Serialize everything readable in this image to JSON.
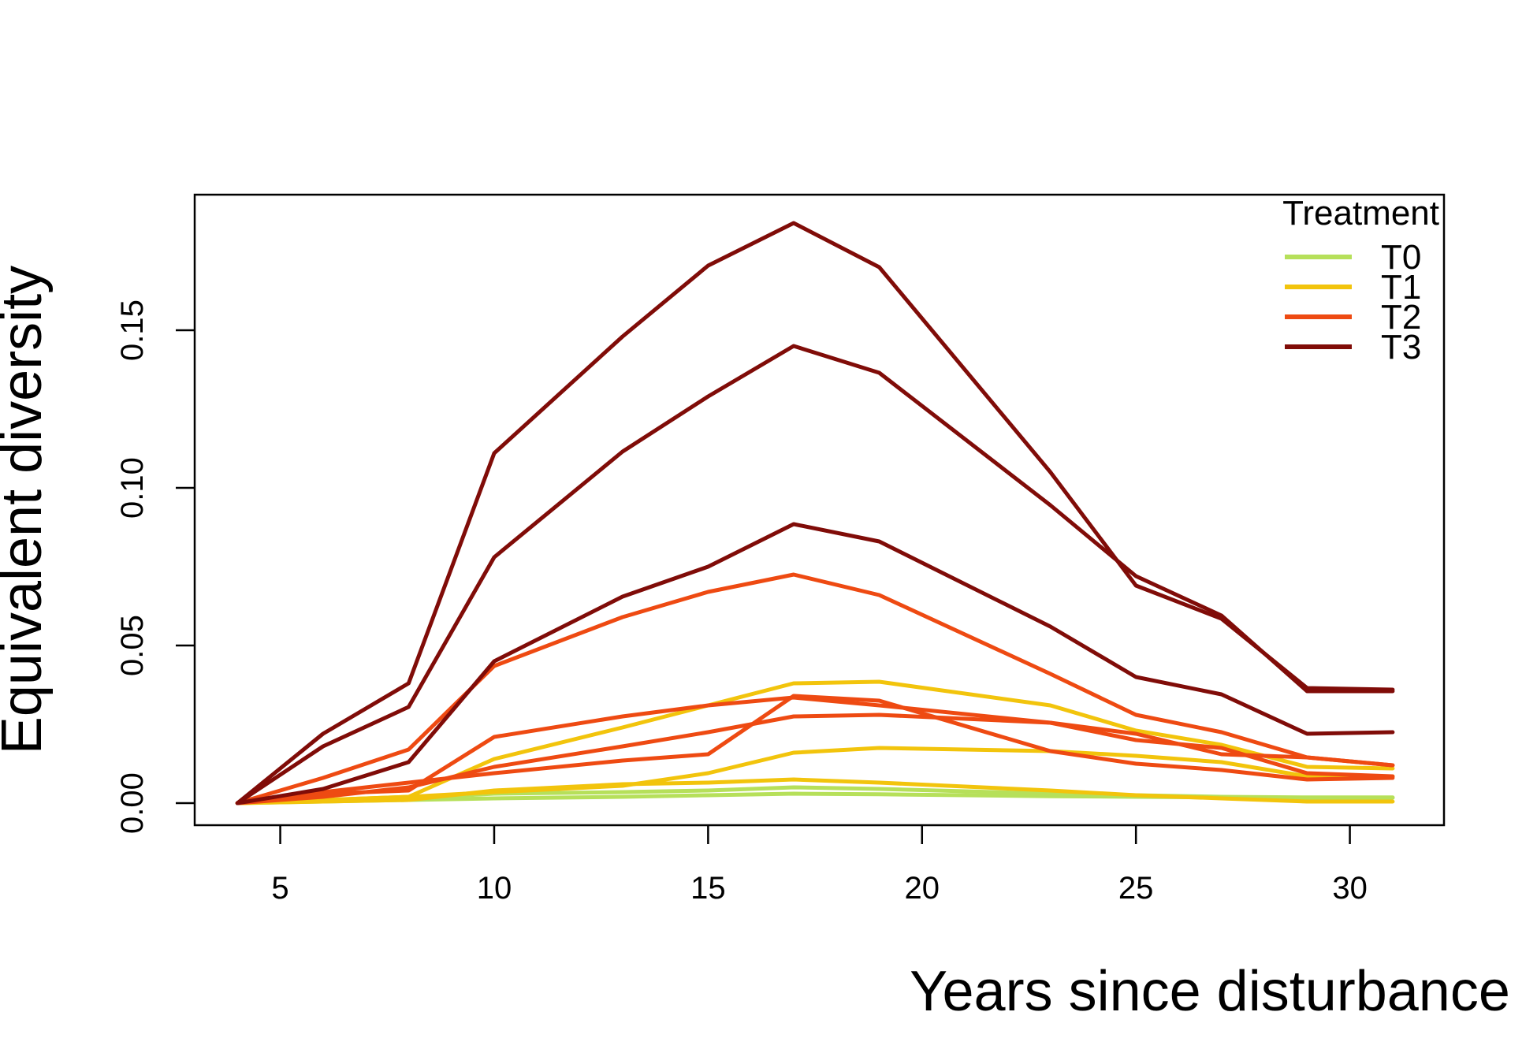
{
  "chart_data": {
    "type": "line",
    "xlabel": "Years since disturbance",
    "ylabel": "Equivalent diversity",
    "xlim": [
      3,
      32.2
    ],
    "ylim": [
      -0.007,
      0.193
    ],
    "x_ticks": [
      "5",
      "10",
      "15",
      "20",
      "25",
      "30"
    ],
    "y_ticks": [
      "0.00",
      "0.05",
      "0.10",
      "0.15"
    ],
    "x": [
      4,
      6,
      8,
      10,
      13,
      15,
      17,
      19,
      23,
      25,
      27,
      29,
      31
    ],
    "grid": false,
    "legend": {
      "title": "Treatment",
      "placement": "top-right",
      "entries": [
        {
          "label": "T0",
          "color": "#b6e05a"
        },
        {
          "label": "T1",
          "color": "#f2c40c"
        },
        {
          "label": "T2",
          "color": "#ee4a12"
        },
        {
          "label": "T3",
          "color": "#800c08"
        }
      ]
    },
    "series": [
      {
        "group": "T0",
        "color": "#b6e05a",
        "values": [
          0.0,
          0.0005,
          0.001,
          0.0015,
          0.002,
          0.0025,
          0.003,
          0.0028,
          0.0022,
          0.002,
          0.0018,
          0.0017,
          0.0017
        ]
      },
      {
        "group": "T0",
        "color": "#b6e05a",
        "values": [
          0.0,
          0.001,
          0.0015,
          0.003,
          0.0035,
          0.004,
          0.005,
          0.0045,
          0.003,
          0.0025,
          0.002,
          0.0018,
          0.0018
        ]
      },
      {
        "group": "T1",
        "color": "#f2c40c",
        "values": [
          0.0,
          0.0005,
          0.001,
          0.004,
          0.006,
          0.0065,
          0.0075,
          0.0065,
          0.004,
          0.0025,
          0.0015,
          0.0005,
          0.0005
        ]
      },
      {
        "group": "T1",
        "color": "#f2c40c",
        "values": [
          0.0,
          0.001,
          0.002,
          0.0035,
          0.0055,
          0.0095,
          0.016,
          0.0175,
          0.0165,
          0.015,
          0.013,
          0.0085,
          0.0085
        ]
      },
      {
        "group": "T1",
        "color": "#f2c40c",
        "values": [
          0.0,
          0.001,
          0.002,
          0.014,
          0.024,
          0.031,
          0.038,
          0.0385,
          0.031,
          0.023,
          0.0185,
          0.0115,
          0.011
        ]
      },
      {
        "group": "T2",
        "color": "#ee4a12",
        "values": [
          0.0,
          0.002,
          0.005,
          0.0115,
          0.018,
          0.0225,
          0.0275,
          0.028,
          0.0255,
          0.02,
          0.0175,
          0.0095,
          0.0085
        ]
      },
      {
        "group": "T2",
        "color": "#ee4a12",
        "values": [
          0.0,
          0.0035,
          0.0065,
          0.0095,
          0.0135,
          0.0155,
          0.034,
          0.0325,
          0.0165,
          0.0125,
          0.0105,
          0.0075,
          0.008
        ]
      },
      {
        "group": "T2",
        "color": "#ee4a12",
        "values": [
          0.0,
          0.003,
          0.004,
          0.021,
          0.0275,
          0.031,
          0.0335,
          0.031,
          0.0255,
          0.022,
          0.0155,
          0.0145,
          0.012
        ]
      },
      {
        "group": "T2",
        "color": "#ee4a12",
        "values": [
          0.0,
          0.008,
          0.017,
          0.0435,
          0.059,
          0.067,
          0.0725,
          0.066,
          0.041,
          0.028,
          0.0225,
          0.0145,
          0.012
        ]
      },
      {
        "group": "T3",
        "color": "#800c08",
        "values": [
          0.0,
          0.0045,
          0.013,
          0.045,
          0.0655,
          0.075,
          0.0885,
          0.083,
          0.056,
          0.04,
          0.0345,
          0.022,
          0.0225
        ]
      },
      {
        "group": "T3",
        "color": "#800c08",
        "values": [
          0.0,
          0.018,
          0.0305,
          0.078,
          0.1115,
          0.129,
          0.145,
          0.1365,
          0.0945,
          0.072,
          0.0595,
          0.0355,
          0.0355
        ]
      },
      {
        "group": "T3",
        "color": "#800c08",
        "values": [
          0.0,
          0.022,
          0.038,
          0.111,
          0.148,
          0.1705,
          0.184,
          0.17,
          0.105,
          0.069,
          0.0585,
          0.0365,
          0.036
        ]
      }
    ]
  }
}
